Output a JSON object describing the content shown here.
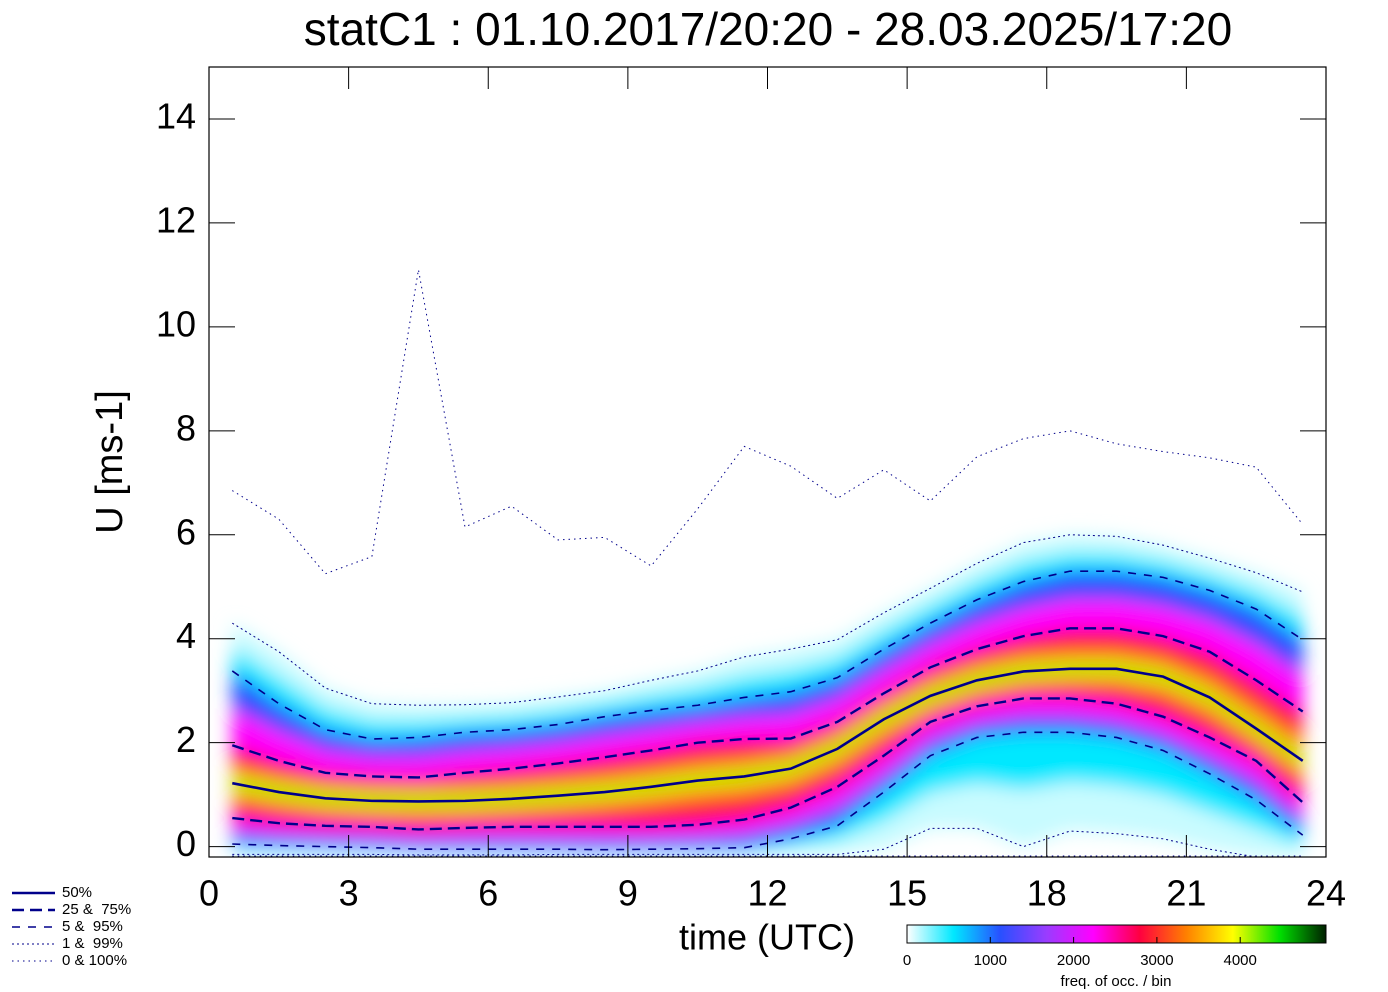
{
  "chart_data": {
    "type": "percentile-density",
    "title": "statC1 : 01.10.2017/20:20 - 28.03.2025/17:20",
    "x_label": "time (UTC)",
    "y_label": "U [ms-1]",
    "x": [
      0.5,
      1.5,
      2.5,
      3.5,
      4.5,
      5.5,
      6.5,
      7.5,
      8.5,
      9.5,
      10.5,
      11.5,
      12.5,
      13.5,
      14.5,
      15.5,
      16.5,
      17.5,
      18.5,
      19.5,
      20.5,
      21.5,
      22.5,
      23.5
    ],
    "xlim": [
      0,
      24
    ],
    "xticks": [
      0,
      3,
      6,
      9,
      12,
      15,
      18,
      21,
      24
    ],
    "ylim": [
      -0.2,
      15
    ],
    "yticks": [
      0,
      2,
      4,
      6,
      8,
      10,
      12,
      14
    ],
    "series": [
      {
        "name": "50%",
        "color": "#00008b",
        "dash": "solid",
        "values": [
          1.22,
          1.05,
          0.93,
          0.88,
          0.87,
          0.88,
          0.92,
          0.98,
          1.05,
          1.15,
          1.27,
          1.35,
          1.5,
          1.88,
          2.45,
          2.9,
          3.2,
          3.37,
          3.42,
          3.42,
          3.27,
          2.87,
          2.27,
          1.65
        ]
      },
      {
        "name": "25 &  75%",
        "color": "#00008b",
        "dash": "dashed",
        "lower": [
          0.55,
          0.45,
          0.4,
          0.38,
          0.33,
          0.36,
          0.38,
          0.38,
          0.38,
          0.38,
          0.42,
          0.52,
          0.75,
          1.15,
          1.75,
          2.4,
          2.7,
          2.85,
          2.85,
          2.75,
          2.5,
          2.1,
          1.65,
          0.85
        ],
        "upper": [
          1.95,
          1.65,
          1.42,
          1.35,
          1.33,
          1.42,
          1.5,
          1.6,
          1.72,
          1.85,
          2.0,
          2.07,
          2.08,
          2.4,
          2.95,
          3.45,
          3.8,
          4.05,
          4.2,
          4.2,
          4.05,
          3.75,
          3.2,
          2.6
        ]
      },
      {
        "name": "5 &  95%",
        "color": "#00008b",
        "dash": "short-dashed",
        "lower": [
          0.05,
          0.02,
          0,
          -0.02,
          -0.05,
          -0.05,
          -0.05,
          -0.05,
          -0.06,
          -0.05,
          -0.04,
          -0.02,
          0.15,
          0.4,
          1.05,
          1.75,
          2.1,
          2.2,
          2.2,
          2.1,
          1.85,
          1.4,
          0.9,
          0.22
        ],
        "upper": [
          3.38,
          2.75,
          2.25,
          2.07,
          2.1,
          2.2,
          2.25,
          2.35,
          2.5,
          2.62,
          2.72,
          2.87,
          2.98,
          3.25,
          3.8,
          4.3,
          4.75,
          5.1,
          5.3,
          5.3,
          5.18,
          4.93,
          4.57,
          3.98
        ]
      },
      {
        "name": "1 &  99%",
        "color": "#00008b",
        "dash": "dotted",
        "lower": [
          -0.15,
          -0.15,
          -0.15,
          -0.15,
          -0.16,
          -0.16,
          -0.16,
          -0.15,
          -0.15,
          -0.15,
          -0.15,
          -0.15,
          -0.15,
          -0.15,
          -0.05,
          0.35,
          0.35,
          0.0,
          0.3,
          0.25,
          0.15,
          -0.05,
          -0.2,
          -0.2
        ],
        "upper": [
          4.3,
          3.75,
          3.05,
          2.75,
          2.72,
          2.73,
          2.77,
          2.88,
          3.0,
          3.2,
          3.38,
          3.65,
          3.8,
          3.98,
          4.5,
          4.97,
          5.45,
          5.85,
          6.0,
          5.97,
          5.8,
          5.55,
          5.27,
          4.9
        ]
      },
      {
        "name": "0 & 100%",
        "color": "#00008b",
        "dash": "sparse-dotted",
        "lower": [
          -0.18,
          -0.18,
          -0.18,
          -0.18,
          -0.18,
          -0.18,
          -0.18,
          -0.18,
          -0.18,
          -0.18,
          -0.18,
          -0.18,
          -0.18,
          -0.18,
          -0.18,
          -0.18,
          -0.18,
          -0.18,
          -0.18,
          -0.18,
          -0.18,
          -0.18,
          -0.18,
          -0.18
        ],
        "upper": [
          6.85,
          6.3,
          5.25,
          5.58,
          11.1,
          6.15,
          6.55,
          5.9,
          5.95,
          5.4,
          6.5,
          7.7,
          7.32,
          6.7,
          7.25,
          6.65,
          7.5,
          7.85,
          8.0,
          7.75,
          7.6,
          7.48,
          7.3,
          6.2
        ]
      }
    ],
    "colorbar": {
      "label": "freq. of occ. / bin",
      "lim": [
        0,
        5030
      ],
      "ticks": [
        0,
        1000,
        2000,
        3000,
        4000
      ],
      "colormap": [
        "#ffffff",
        "#00e8ff",
        "#2850ff",
        "#9a3cff",
        "#ff00ff",
        "#ff0040",
        "#ff8000",
        "#ffff00",
        "#00e000",
        "#002000"
      ]
    }
  }
}
